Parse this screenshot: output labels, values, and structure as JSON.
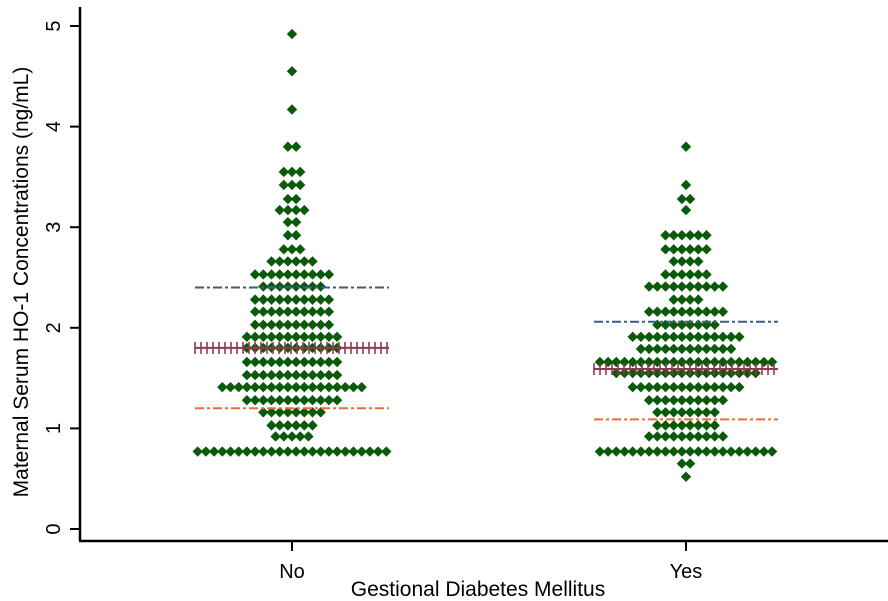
{
  "chart_data": {
    "type": "scatter",
    "subtype": "dot-plot",
    "title": "",
    "xlabel": "Gestional Diabetes Mellitus",
    "ylabel": "Maternal Serum HO-1 Concentrations (ng/mL)",
    "ylim": [
      0,
      5
    ],
    "yticks": [
      "0",
      "1",
      "2",
      "3",
      "4",
      "5"
    ],
    "categories": [
      "No",
      "Yes"
    ],
    "grid": false,
    "legend": "none",
    "colors": {
      "points": "#0b5a0b",
      "upper_line": "#3c5a8c",
      "median_line": "#8e3a4c",
      "lower_line": "#f06a36"
    },
    "groups": [
      {
        "category": "No",
        "reference_lines": {
          "upper": 2.4,
          "median": 1.8,
          "lower": 1.2
        },
        "rows": [
          {
            "y": 4.92,
            "n": 1
          },
          {
            "y": 4.55,
            "n": 1
          },
          {
            "y": 4.17,
            "n": 1
          },
          {
            "y": 3.8,
            "n": 2
          },
          {
            "y": 3.55,
            "n": 3
          },
          {
            "y": 3.42,
            "n": 3
          },
          {
            "y": 3.28,
            "n": 2
          },
          {
            "y": 3.17,
            "n": 4
          },
          {
            "y": 3.05,
            "n": 2
          },
          {
            "y": 2.92,
            "n": 2
          },
          {
            "y": 2.78,
            "n": 3
          },
          {
            "y": 2.66,
            "n": 6
          },
          {
            "y": 2.53,
            "n": 10
          },
          {
            "y": 2.41,
            "n": 8
          },
          {
            "y": 2.28,
            "n": 10
          },
          {
            "y": 2.16,
            "n": 10
          },
          {
            "y": 2.03,
            "n": 10
          },
          {
            "y": 1.91,
            "n": 12
          },
          {
            "y": 1.8,
            "n": 12
          },
          {
            "y": 1.66,
            "n": 12
          },
          {
            "y": 1.53,
            "n": 12
          },
          {
            "y": 1.41,
            "n": 18
          },
          {
            "y": 1.28,
            "n": 12
          },
          {
            "y": 1.16,
            "n": 8
          },
          {
            "y": 1.03,
            "n": 6
          },
          {
            "y": 0.92,
            "n": 5
          },
          {
            "y": 0.77,
            "n": 24
          }
        ]
      },
      {
        "category": "Yes",
        "reference_lines": {
          "upper": 2.06,
          "median": 1.59,
          "lower": 1.09
        },
        "rows": [
          {
            "y": 3.8,
            "n": 1
          },
          {
            "y": 3.42,
            "n": 1
          },
          {
            "y": 3.28,
            "n": 2
          },
          {
            "y": 3.17,
            "n": 1
          },
          {
            "y": 2.92,
            "n": 6
          },
          {
            "y": 2.78,
            "n": 6
          },
          {
            "y": 2.66,
            "n": 4
          },
          {
            "y": 2.53,
            "n": 6
          },
          {
            "y": 2.41,
            "n": 10
          },
          {
            "y": 2.28,
            "n": 4
          },
          {
            "y": 2.16,
            "n": 10
          },
          {
            "y": 2.03,
            "n": 8
          },
          {
            "y": 1.91,
            "n": 14
          },
          {
            "y": 1.79,
            "n": 12
          },
          {
            "y": 1.66,
            "n": 22
          },
          {
            "y": 1.55,
            "n": 18
          },
          {
            "y": 1.41,
            "n": 14
          },
          {
            "y": 1.28,
            "n": 10
          },
          {
            "y": 1.16,
            "n": 8
          },
          {
            "y": 1.03,
            "n": 8
          },
          {
            "y": 0.92,
            "n": 10
          },
          {
            "y": 0.77,
            "n": 22
          },
          {
            "y": 0.65,
            "n": 2
          },
          {
            "y": 0.52,
            "n": 1
          }
        ]
      }
    ]
  }
}
